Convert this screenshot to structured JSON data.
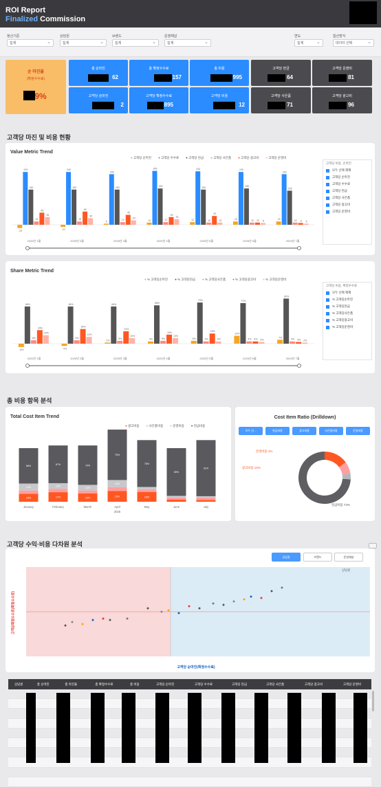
{
  "header": {
    "title_line1": "ROI Report",
    "title_line2_highlight": "Finalized",
    "title_line2_rest": " Commission"
  },
  "filters": [
    {
      "label": "정산기준",
      "value": "집계"
    },
    {
      "label": "상담원",
      "value": "집계"
    },
    {
      "label": "브랜드",
      "value": "집계"
    },
    {
      "label": "운영채널",
      "value": "집계"
    }
  ],
  "filters_right": [
    {
      "label": "연도",
      "value": "집계"
    },
    {
      "label": "합산방식",
      "value": "데이터 선택"
    }
  ],
  "kpis": {
    "main": {
      "title": "순 마진율",
      "sub": "(확정수수료)",
      "value": "9%"
    },
    "blue": [
      {
        "title": "총 순마진",
        "value": "62"
      },
      {
        "title": "총 확정수수료",
        "value": "35,157"
      },
      {
        "title": "총 비용",
        "value": "34,995"
      },
      {
        "title": "고객당 순마진",
        "value": "2"
      },
      {
        "title": "고객당 확정수수료",
        "value": "895"
      },
      {
        "title": "고객당 비용",
        "value": "12"
      }
    ],
    "dark": [
      {
        "title": "고객당 현금",
        "value": "64"
      },
      {
        "title": "고객당 운영비",
        "value": "81"
      },
      {
        "title": "고객당 사은품",
        "value": "71"
      },
      {
        "title": "고객당 광고비",
        "value": "96"
      }
    ]
  },
  "sections": {
    "s1": "고객당 마진 및 비용 현황",
    "s2": "총 비용 항목 분석",
    "s3": "고객당 수익·비용 다차원 분석"
  },
  "value_trend": {
    "title": "Value Metric Trend",
    "legend": [
      "고객당 순마진",
      "고객당 수수료",
      "고객당 현금",
      "고객당 사은품",
      "고객당 광고비",
      "고객당 운영비"
    ],
    "side_legend_title": "고객당 비용, 순마진",
    "side_legend": [
      "모두 선택 해제",
      "고객당 순마진",
      "고객당 수수료",
      "고객당 현금",
      "고객당 사은품",
      "고객당 광고비",
      "고객당 운영비"
    ],
    "categories": [
      "2025년 1월",
      "2025년 2월",
      "2025년 3월",
      "2025년 4월",
      "2025년 5월",
      "2025년 6월",
      "2025년 7월"
    ],
    "colors": [
      "#f5a623",
      "#2a8cff",
      "#555555",
      "#ff8a80",
      "#ff5722",
      "#ffb3a7"
    ]
  },
  "share_trend": {
    "title": "Share Metric Trend",
    "legend": [
      "% 고객당순마진",
      "% 고객당현금",
      "% 고객당사은품",
      "% 고객당광고비",
      "% 고객당운영비"
    ],
    "side_legend_title": "고객당 비용, 확정수수료",
    "side_legend": [
      "모두 선택 해제",
      "% 고객당순마진",
      "% 고객당현금",
      "% 고객당사은품",
      "% 고객당광고비",
      "% 고객당운영비"
    ],
    "categories": [
      "2025년 1월",
      "2025년 2월",
      "2025년 3월",
      "2025년 4월",
      "2025년 5월",
      "2025년 6월",
      "2025년 7월"
    ]
  },
  "cost_trend": {
    "title": "Total Cost Item Trend",
    "legend": [
      "광고비용",
      "사은품비용",
      "운영비용",
      "현금비용"
    ],
    "categories": [
      "January",
      "February",
      "March",
      "April",
      "May",
      "June",
      "July"
    ],
    "year_label": "2025"
  },
  "cost_ratio": {
    "title": "Cost Item Ratio (Drilldown)",
    "buttons": [
      "모두 선...",
      "현금비용",
      "광고비용",
      "사은품비용",
      "운영비용"
    ],
    "labels": {
      "ops": "운영비용 4%",
      "ad": "광고비용 15%",
      "cash": "현금비용 74%"
    }
  },
  "scatter": {
    "buttons": [
      "상담원",
      "브랜드",
      "운영채널"
    ],
    "ylabel": "고객당확정수수료(확정수수료)",
    "xlabel": "고객당 순마진(확정수수료)",
    "corner_label": "상담원"
  },
  "table": {
    "headers": [
      "상담원",
      "총 순마진",
      "총 마진율",
      "총 확정수수료",
      "총 비용",
      "고객당 순마진",
      "고객당 수수료",
      "고객당 현금",
      "고객당 사은품",
      "고객당 광고비",
      "고객당 운영비"
    ]
  },
  "chart_data": [
    {
      "type": "bar",
      "title": "Value Metric Trend",
      "categories": [
        "2025년 1월",
        "2025년 2월",
        "2025년 3월",
        "2025년 4월",
        "2025년 5월",
        "2025년 6월",
        "2025년 7월"
      ],
      "series": [
        {
          "name": "고객당 순마진",
          "values": [
            -15,
            -10,
            5,
            10,
            12,
            15,
            15
          ]
        },
        {
          "name": "고객당 수수료",
          "values": [
            240,
            240,
            230,
            245,
            243,
            240,
            230
          ]
        },
        {
          "name": "고객당 현금",
          "values": [
            160,
            160,
            160,
            165,
            160,
            165,
            155
          ]
        },
        {
          "name": "고객당 사은품",
          "values": [
            15,
            15,
            12,
            12,
            10,
            10,
            10
          ]
        },
        {
          "name": "고객당 광고비",
          "values": [
            55,
            60,
            45,
            35,
            40,
            10,
            8
          ]
        },
        {
          "name": "고객당 운영비",
          "values": [
            35,
            30,
            20,
            25,
            10,
            8,
            5
          ]
        }
      ]
    },
    {
      "type": "bar",
      "title": "Share Metric Trend",
      "categories": [
        "2025년 1월",
        "2025년 2월",
        "2025년 3월",
        "2025년 4월",
        "2025년 5월",
        "2025년 6월",
        "2025년 7월"
      ],
      "series": [
        {
          "name": "% 고객당순마진",
          "values": [
            -6,
            -4,
            2,
            4,
            5,
            14,
            7
          ]
        },
        {
          "name": "% 고객당현금",
          "values": [
            66,
            66,
            66,
            68,
            73,
            72,
            80
          ]
        },
        {
          "name": "% 고객당사은품",
          "values": [
            6,
            6,
            5,
            5,
            4,
            4,
            4
          ]
        },
        {
          "name": "% 고객당광고비",
          "values": [
            24,
            26,
            22,
            16,
            18,
            4,
            3
          ]
        },
        {
          "name": "% 고객당운영비",
          "values": [
            15,
            12,
            10,
            10,
            4,
            3,
            2
          ]
        }
      ]
    },
    {
      "type": "bar",
      "title": "Total Cost Item Trend",
      "categories": [
        "January",
        "February",
        "March",
        "April",
        "May",
        "June",
        "July"
      ],
      "series": [
        {
          "name": "광고비용",
          "values": [
            15,
            17,
            15,
            15,
            16,
            4,
            3
          ]
        },
        {
          "name": "사은품비용",
          "values": [
            6,
            6,
            5,
            5,
            4,
            4,
            4
          ]
        },
        {
          "name": "운영비용",
          "values": [
            13,
            10,
            10,
            10,
            4,
            3,
            2
          ]
        },
        {
          "name": "현금비용",
          "values": [
            66,
            67,
            70,
            70,
            76,
            89,
            91
          ]
        }
      ]
    },
    {
      "type": "pie",
      "title": "Cost Item Ratio (Drilldown)",
      "categories": [
        "현금비용",
        "광고비용",
        "사은품비용",
        "운영비용"
      ],
      "values": [
        74,
        15,
        7,
        4
      ]
    }
  ]
}
